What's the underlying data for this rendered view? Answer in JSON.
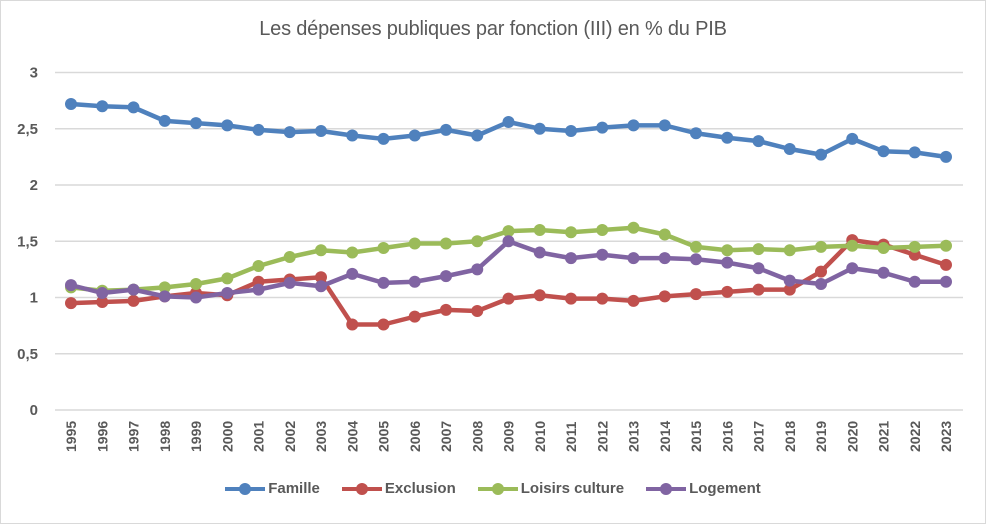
{
  "chart_data": {
    "type": "line",
    "title": "Les dépenses publiques par fonction (III) en % du PIB",
    "xlabel": "",
    "ylabel": "",
    "ylim": [
      0,
      3
    ],
    "yticks": [
      "0",
      "0,5",
      "1",
      "1,5",
      "2",
      "2,5",
      "3"
    ],
    "ytick_values": [
      0,
      0.5,
      1,
      1.5,
      2,
      2.5,
      3
    ],
    "grid": true,
    "legend_position": "bottom",
    "x": [
      "1995",
      "1996",
      "1997",
      "1998",
      "1999",
      "2000",
      "2001",
      "2002",
      "2003",
      "2004",
      "2005",
      "2006",
      "2007",
      "2008",
      "2009",
      "2010",
      "2011",
      "2012",
      "2013",
      "2014",
      "2015",
      "2016",
      "2017",
      "2018",
      "2019",
      "2020",
      "2021",
      "2022",
      "2023"
    ],
    "series": [
      {
        "name": "Famille",
        "color": "#4f81bd",
        "values": [
          2.72,
          2.7,
          2.69,
          2.57,
          2.55,
          2.53,
          2.49,
          2.47,
          2.48,
          2.44,
          2.41,
          2.44,
          2.49,
          2.44,
          2.56,
          2.5,
          2.48,
          2.51,
          2.53,
          2.53,
          2.46,
          2.42,
          2.39,
          2.32,
          2.27,
          2.41,
          2.3,
          2.29,
          2.25
        ]
      },
      {
        "name": "Exclusion",
        "color": "#c0504d",
        "values": [
          0.95,
          0.96,
          0.97,
          1.01,
          1.04,
          1.02,
          1.14,
          1.16,
          1.18,
          0.76,
          0.76,
          0.83,
          0.89,
          0.88,
          0.99,
          1.02,
          0.99,
          0.99,
          0.97,
          1.01,
          1.03,
          1.05,
          1.07,
          1.07,
          1.23,
          1.51,
          1.47,
          1.38,
          1.29
        ]
      },
      {
        "name": "Loisirs culture",
        "color": "#9bbb59",
        "values": [
          1.09,
          1.06,
          1.07,
          1.09,
          1.12,
          1.17,
          1.28,
          1.36,
          1.42,
          1.4,
          1.44,
          1.48,
          1.48,
          1.5,
          1.59,
          1.6,
          1.58,
          1.6,
          1.62,
          1.56,
          1.45,
          1.42,
          1.43,
          1.42,
          1.45,
          1.46,
          1.44,
          1.45,
          1.46
        ]
      },
      {
        "name": "Logement",
        "color": "#8064a2",
        "values": [
          1.11,
          1.04,
          1.07,
          1.01,
          1.0,
          1.04,
          1.07,
          1.13,
          1.1,
          1.21,
          1.13,
          1.14,
          1.19,
          1.25,
          1.5,
          1.4,
          1.35,
          1.38,
          1.35,
          1.35,
          1.34,
          1.31,
          1.26,
          1.15,
          1.12,
          1.26,
          1.22,
          1.14,
          1.14
        ]
      }
    ]
  }
}
